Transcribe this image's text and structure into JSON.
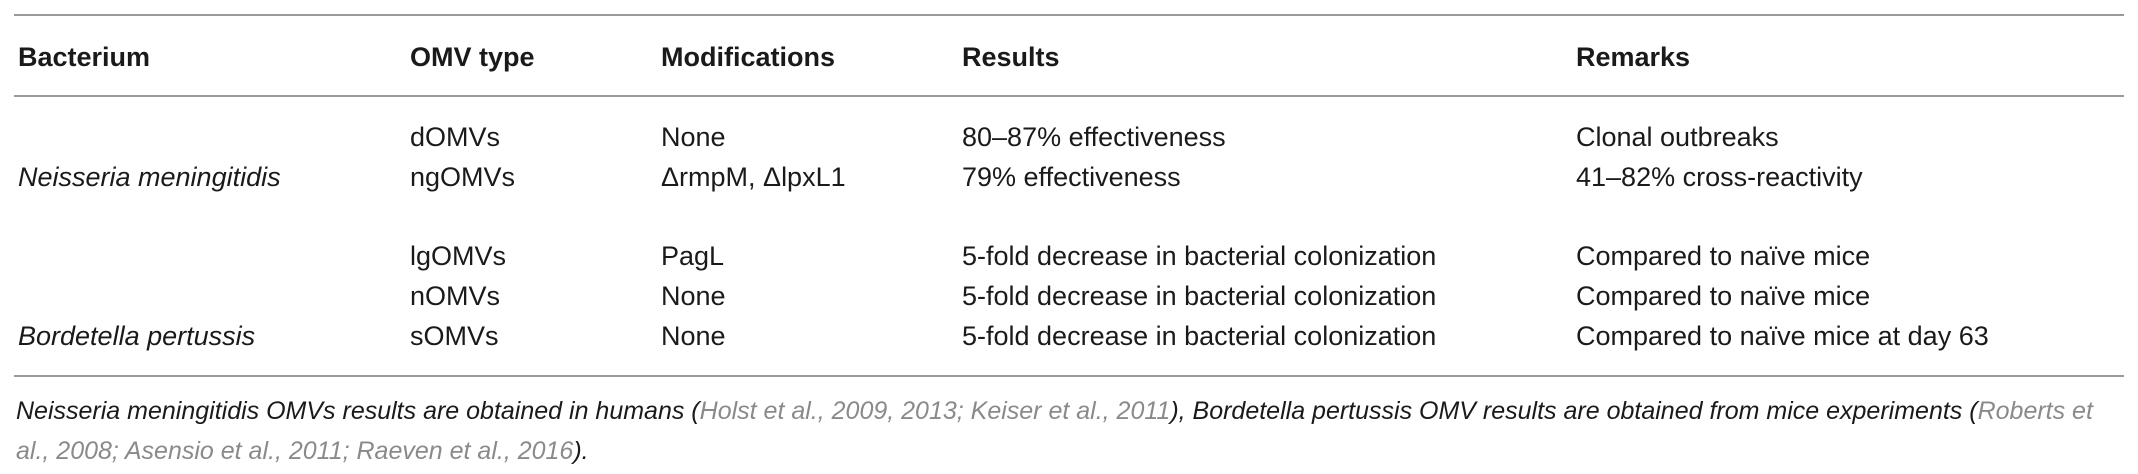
{
  "table": {
    "headers": [
      "Bacterium",
      "OMV type",
      "Modifications",
      "Results",
      "Remarks"
    ],
    "groups": [
      {
        "bacterium": "Neisseria meningitidis",
        "rows": [
          {
            "omv_type": "dOMVs",
            "modifications": "None",
            "results": "80–87% effectiveness",
            "remarks": "Clonal outbreaks"
          },
          {
            "omv_type": "ngOMVs",
            "modifications": "ΔrmpM, ΔlpxL1",
            "results": "79% effectiveness",
            "remarks": "41–82% cross-reactivity"
          }
        ]
      },
      {
        "bacterium": "Bordetella pertussis",
        "rows": [
          {
            "omv_type": "lgOMVs",
            "modifications": "PagL",
            "results": "5-fold decrease in bacterial colonization",
            "remarks": "Compared to naïve mice"
          },
          {
            "omv_type": "nOMVs",
            "modifications": "None",
            "results": "5-fold decrease in bacterial colonization",
            "remarks": "Compared to naïve mice"
          },
          {
            "omv_type": "sOMVs",
            "modifications": "None",
            "results": "5-fold decrease in bacterial colonization",
            "remarks": "Compared to naïve mice at day 63"
          }
        ]
      }
    ]
  },
  "footnote": {
    "part1": "Neisseria meningitidis OMVs results are obtained in humans (",
    "ref1": "Holst et al., 2009, 2013; Keiser et al., 2011",
    "part2": "), Bordetella pertussis OMV results are obtained from mice experiments (",
    "ref2": "Roberts et al., 2008; Asensio et al., 2011; Raeven et al., 2016",
    "part3": ")."
  }
}
